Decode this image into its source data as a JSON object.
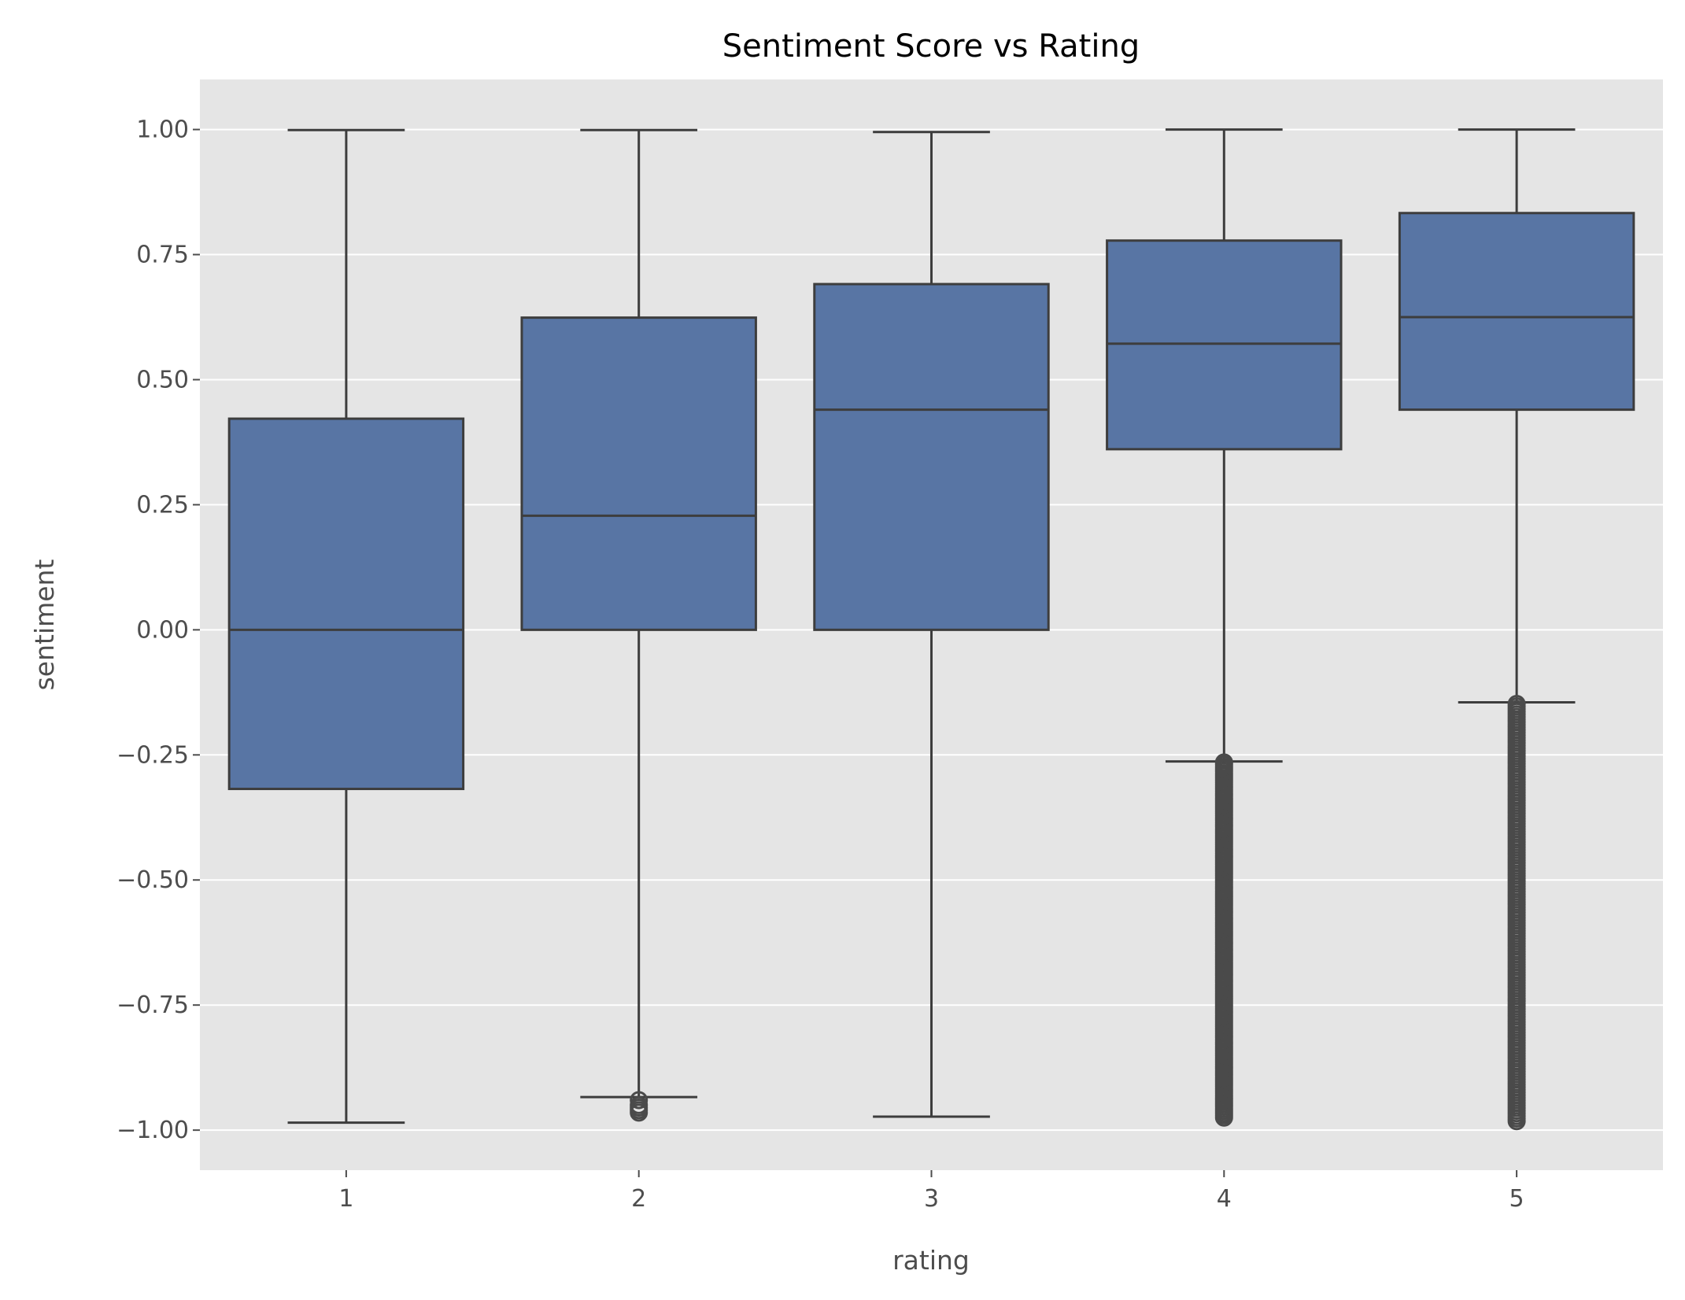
{
  "chart_data": {
    "type": "box",
    "title": "Sentiment Score vs Rating",
    "xlabel": "rating",
    "ylabel": "sentiment",
    "categories": [
      "1",
      "2",
      "3",
      "4",
      "5"
    ],
    "ylim": [
      -1.08,
      1.1
    ],
    "yticks": [
      1.0,
      0.75,
      0.5,
      0.25,
      0.0,
      -0.25,
      -0.5,
      -0.75,
      -1.0
    ],
    "ytick_labels": [
      "1.00",
      "0.75",
      "0.50",
      "0.25",
      "0.00",
      "−0.25",
      "−0.50",
      "−0.75",
      "−1.00"
    ],
    "grid": true,
    "boxes": [
      {
        "category": "1",
        "whisker_low": -0.985,
        "q1": -0.318,
        "median": 0.0,
        "q3": 0.422,
        "whisker_high": 0.999,
        "outliers": []
      },
      {
        "category": "2",
        "whisker_low": -0.934,
        "q1": 0.0,
        "median": 0.228,
        "q3": 0.624,
        "whisker_high": 0.999,
        "outliers": [
          -0.94,
          -0.95,
          -0.955,
          -0.96,
          -0.965
        ]
      },
      {
        "category": "3",
        "whisker_low": -0.973,
        "q1": 0.0,
        "median": 0.44,
        "q3": 0.691,
        "whisker_high": 0.995,
        "outliers": []
      },
      {
        "category": "4",
        "whisker_low": -0.263,
        "q1": 0.361,
        "median": 0.572,
        "q3": 0.778,
        "whisker_high": 1.0,
        "outliers_range": [
          -0.975,
          -0.265
        ]
      },
      {
        "category": "5",
        "whisker_low": -0.145,
        "q1": 0.44,
        "median": 0.625,
        "q3": 0.833,
        "whisker_high": 1.0,
        "outliers_range": [
          -0.982,
          -0.148
        ]
      }
    ]
  },
  "colors": {
    "plot_background": "#e5e5e5",
    "grid": "#ffffff",
    "box_fill": "#5875a4",
    "box_edge": "#3d3d3d",
    "outlier_edge": "#4a4a4a"
  }
}
